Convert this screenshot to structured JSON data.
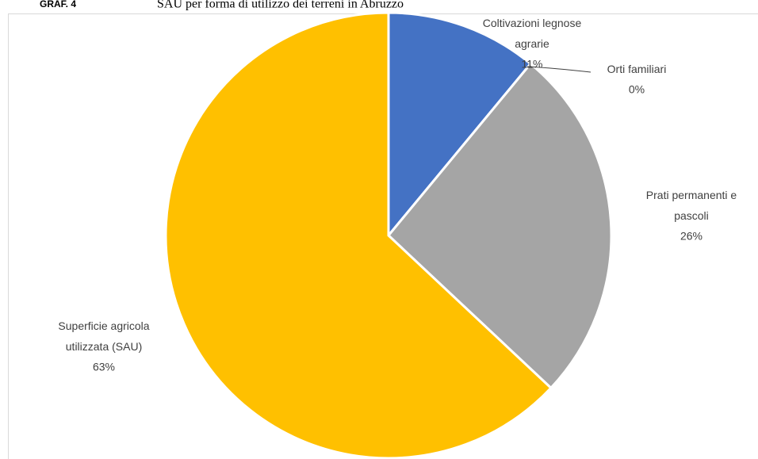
{
  "chart_data": {
    "type": "pie",
    "title_prefix": "GRAF. 4",
    "title": "SAU per forma di utilizzo dei terreni in Abruzzo",
    "categories": [
      "Coltivazioni legnose agrarie",
      "Orti familiari",
      "Prati permanenti e pascoli",
      "Superficie agricola utilizzata (SAU)"
    ],
    "values": [
      11,
      0,
      26,
      63
    ],
    "value_labels": [
      "11%",
      "0%",
      "26%",
      "63%"
    ],
    "colors": [
      "#4472c4",
      "#ed7d31",
      "#a5a5a5",
      "#ffc000"
    ]
  }
}
